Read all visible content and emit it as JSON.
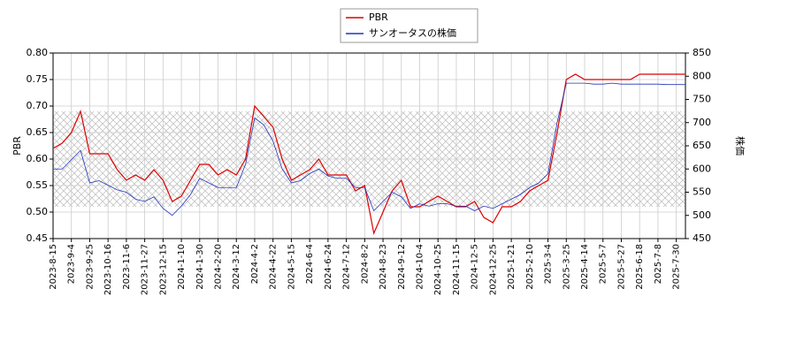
{
  "chart_data": {
    "type": "line",
    "categories": [
      "2023-8-15",
      null,
      "2023-9-4",
      null,
      "2023-9-25",
      null,
      "2023-10-16",
      null,
      "2023-11-6",
      null,
      "2023-11-27",
      null,
      "2023-12-15",
      null,
      "2024-1-10",
      null,
      "2024-1-30",
      null,
      "2024-2-20",
      null,
      "2024-3-12",
      null,
      "2024-4-2",
      null,
      "2024-4-22",
      null,
      "2024-5-15",
      null,
      "2024-6-4",
      null,
      "2024-6-24",
      null,
      "2024-7-12",
      null,
      "2024-8-2",
      null,
      "2024-8-23",
      null,
      "2024-9-12",
      null,
      "2024-10-4",
      null,
      "2024-10-25",
      null,
      "2024-11-15",
      null,
      "2024-12-5",
      null,
      "2024-12-25",
      null,
      "2025-1-21",
      null,
      "2025-2-10",
      null,
      "2025-3-4",
      null,
      "2025-3-25",
      null,
      "2025-4-14",
      null,
      "2025-5-7",
      null,
      "2025-5-27",
      null,
      "2025-6-18",
      null,
      "2025-7-8",
      null,
      "2025-7-30",
      null
    ],
    "series": [
      {
        "name": "PBR",
        "color": "#dd0000",
        "values": [
          0.62,
          0.63,
          0.65,
          0.69,
          0.61,
          0.61,
          0.61,
          0.58,
          0.56,
          0.57,
          0.56,
          0.58,
          0.56,
          0.52,
          0.53,
          0.56,
          0.59,
          0.59,
          0.57,
          0.58,
          0.57,
          0.6,
          0.7,
          0.68,
          0.66,
          0.6,
          0.56,
          0.57,
          0.58,
          0.6,
          0.57,
          0.57,
          0.57,
          0.54,
          0.55,
          0.46,
          0.5,
          0.54,
          0.56,
          0.51,
          0.51,
          0.52,
          0.53,
          0.52,
          0.51,
          0.51,
          0.52,
          0.49,
          0.48,
          0.51,
          0.51,
          0.52,
          0.54,
          0.55,
          0.56,
          0.65,
          0.75,
          0.76,
          0.75,
          0.75,
          0.75,
          0.75,
          0.75,
          0.75,
          0.76,
          0.76,
          0.76,
          0.76,
          0.76,
          0.76
        ]
      },
      {
        "name": "サンオータスの株価",
        "color": "#2233bb",
        "axis": "y2",
        "values": [
          600,
          600,
          620,
          640,
          570,
          575,
          565,
          555,
          550,
          535,
          530,
          540,
          515,
          500,
          520,
          545,
          580,
          570,
          560,
          560,
          560,
          610,
          710,
          695,
          660,
          600,
          570,
          575,
          590,
          600,
          585,
          580,
          580,
          560,
          560,
          510,
          530,
          550,
          540,
          515,
          525,
          520,
          525,
          525,
          520,
          520,
          510,
          520,
          515,
          525,
          535,
          545,
          560,
          570,
          590,
          700,
          785,
          785,
          785,
          783,
          783,
          785,
          783,
          783,
          783,
          783,
          783,
          782,
          782,
          782
        ]
      }
    ],
    "ylabel": "PBR",
    "y2label": "株価",
    "ylim": [
      0.45,
      0.8
    ],
    "yticks": [
      0.45,
      {
        "value": 0.5,
        "label": "0.50"
      },
      0.55,
      {
        "value": 0.6,
        "label": "0.60"
      },
      0.65,
      {
        "value": 0.7,
        "label": "0.70"
      },
      0.75,
      {
        "value": 0.8,
        "label": "0.80"
      }
    ],
    "y2lim": [
      450,
      850
    ],
    "y2ticks": [
      450,
      500,
      550,
      600,
      650,
      700,
      750,
      800,
      850
    ],
    "shaded_range": [
      0.51,
      0.69
    ],
    "grid": true,
    "legend": "top"
  }
}
